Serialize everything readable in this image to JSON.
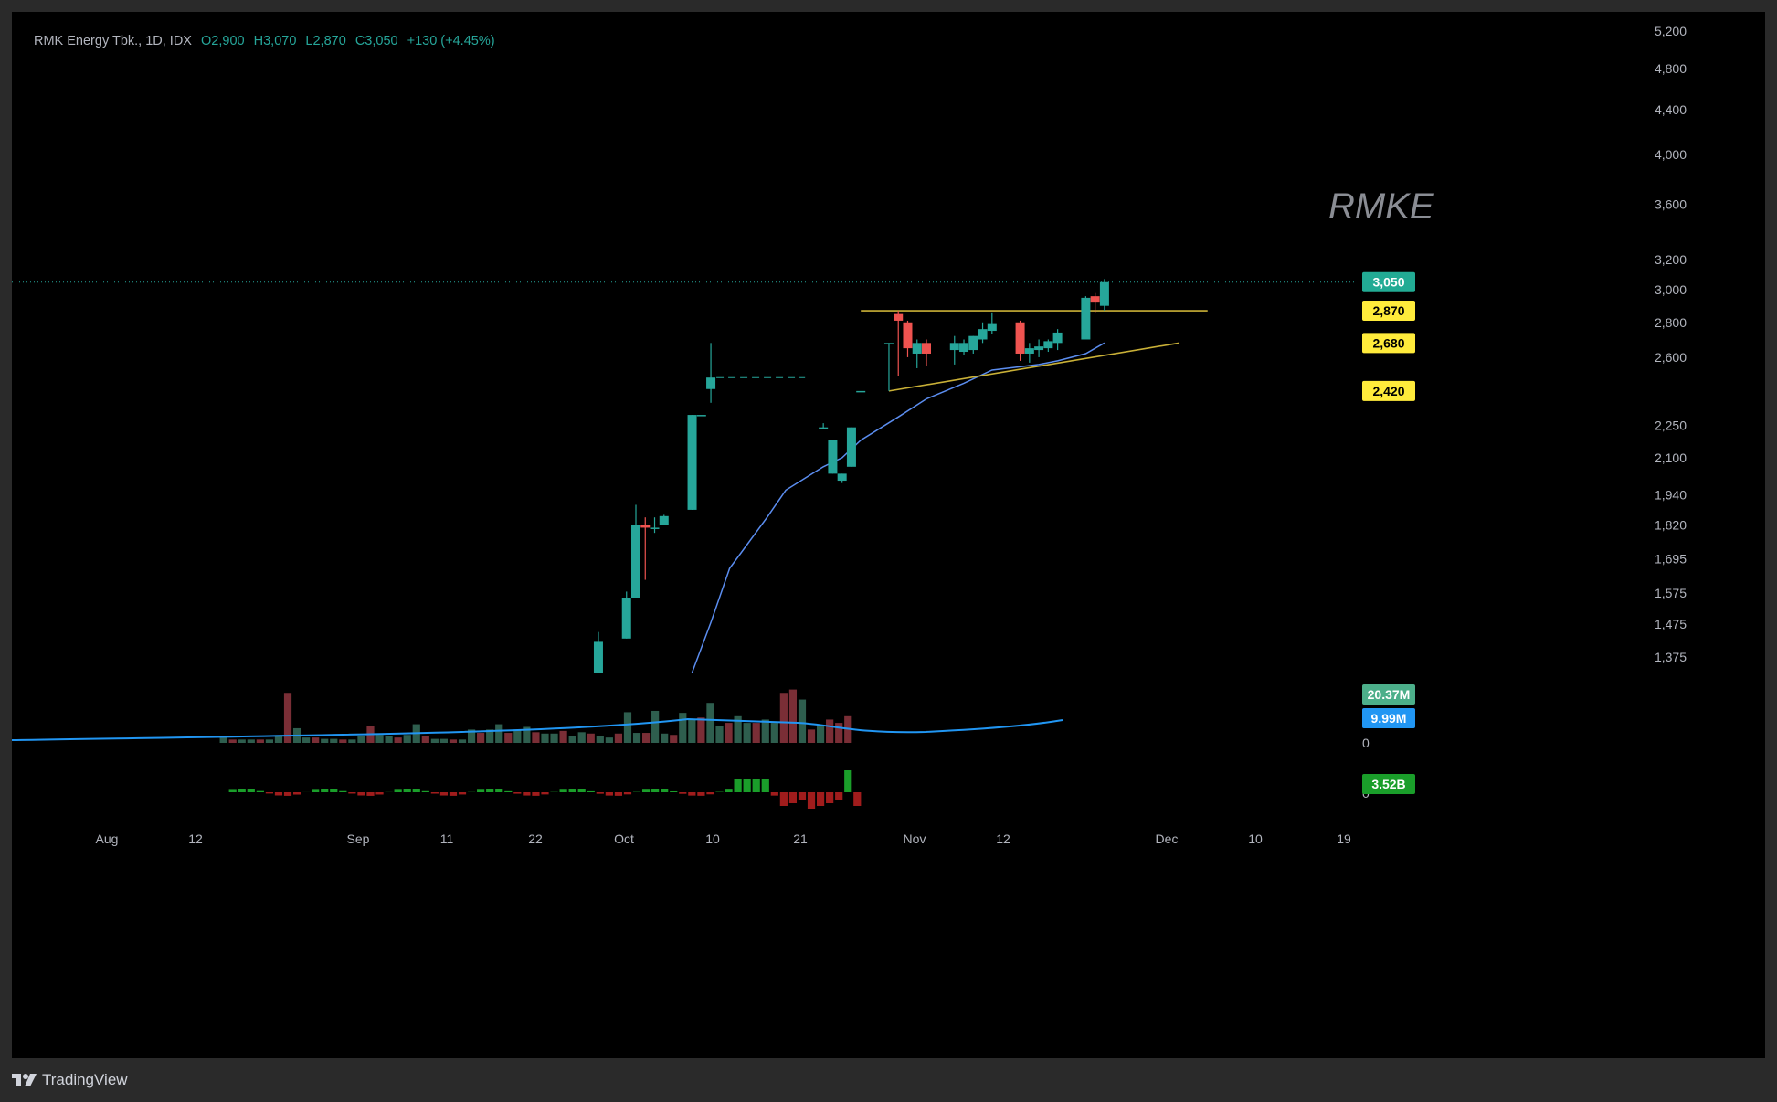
{
  "header": {
    "symbol": "RMK Energy Tbk., 1D, IDX",
    "open": "O2,900",
    "high": "H3,070",
    "low": "L2,870",
    "close": "C3,050",
    "change": "+130 (+4.45%)"
  },
  "watermark": "RMKE",
  "footer": {
    "brand": "TradingView"
  },
  "colors": {
    "up": "#26a69a",
    "down": "#ef5350",
    "ma": "#5b8def",
    "trendline": "#c9b037",
    "badge_yellow": "#ffeb3b",
    "badge_green": "#22ab94",
    "badge_blue": "#2196f3",
    "vol_up": "#2e5e4e",
    "vol_down": "#7a2e36"
  },
  "price_axis": {
    "labels": [
      "5,200",
      "4,800",
      "4,400",
      "4,000",
      "3,600",
      "3,200",
      "3,000",
      "2,800",
      "2,600",
      "2,250",
      "2,100",
      "1,940",
      "1,820",
      "1,695",
      "1,575",
      "1,475",
      "1,375"
    ],
    "scale": "log"
  },
  "badges": {
    "last_price": "3,050",
    "level_1": "2,870",
    "level_2": "2,680",
    "level_3": "2,420",
    "volume": "20.37M",
    "volume_ma": "9.99M",
    "volume_zero": "0",
    "flow": "3.52B",
    "flow_zero": "0"
  },
  "time_axis": {
    "labels": [
      "Aug",
      "12",
      "Sep",
      "11",
      "22",
      "Oct",
      "10",
      "21",
      "Nov",
      "12",
      "Dec",
      "10",
      "19"
    ]
  },
  "chart_data": {
    "type": "candlestick",
    "title": "RMK Energy Tbk., 1D, IDX",
    "ylim": [
      1300,
      5300
    ],
    "candles": [
      {
        "date": "Sep 27",
        "o": 1330,
        "h": 1450,
        "l": 1330,
        "c": 1420
      },
      {
        "date": "Sep 30",
        "o": 1430,
        "h": 1580,
        "l": 1430,
        "c": 1560
      },
      {
        "date": "Oct 1",
        "o": 1560,
        "h": 1900,
        "l": 1560,
        "c": 1820
      },
      {
        "date": "Oct 2",
        "o": 1820,
        "h": 1850,
        "l": 1620,
        "c": 1810
      },
      {
        "date": "Oct 3",
        "o": 1810,
        "h": 1850,
        "l": 1790,
        "c": 1810
      },
      {
        "date": "Oct 4",
        "o": 1820,
        "h": 1860,
        "l": 1820,
        "c": 1855
      },
      {
        "date": "Oct 7",
        "o": 1880,
        "h": 2300,
        "l": 1880,
        "c": 2300
      },
      {
        "date": "Oct 8",
        "o": 2300,
        "h": 2300,
        "l": 2300,
        "c": 2300
      },
      {
        "date": "Oct 9",
        "o": 2430,
        "h": 2680,
        "l": 2360,
        "c": 2490
      },
      {
        "date": "Oct 21",
        "o": 2240,
        "h": 2260,
        "l": 2230,
        "c": 2240
      },
      {
        "date": "Oct 22",
        "o": 2030,
        "h": 2170,
        "l": 2030,
        "c": 2180
      },
      {
        "date": "Oct 23",
        "o": 2000,
        "h": 2030,
        "l": 1990,
        "c": 2030
      },
      {
        "date": "Oct 24",
        "o": 2060,
        "h": 2240,
        "l": 2060,
        "c": 2240
      },
      {
        "date": "Oct 25",
        "o": 2420,
        "h": 2420,
        "l": 2420,
        "c": 2420
      },
      {
        "date": "Oct 28",
        "o": 2680,
        "h": 2680,
        "l": 2420,
        "c": 2680
      },
      {
        "date": "Oct 29",
        "o": 2850,
        "h": 2870,
        "l": 2500,
        "c": 2810
      },
      {
        "date": "Oct 30",
        "o": 2800,
        "h": 2810,
        "l": 2600,
        "c": 2650
      },
      {
        "date": "Oct 31",
        "o": 2620,
        "h": 2700,
        "l": 2540,
        "c": 2680
      },
      {
        "date": "Nov 1",
        "o": 2680,
        "h": 2700,
        "l": 2550,
        "c": 2620
      },
      {
        "date": "Nov 4",
        "o": 2640,
        "h": 2720,
        "l": 2560,
        "c": 2680
      },
      {
        "date": "Nov 5",
        "o": 2630,
        "h": 2700,
        "l": 2610,
        "c": 2680
      },
      {
        "date": "Nov 6",
        "o": 2640,
        "h": 2720,
        "l": 2620,
        "c": 2720
      },
      {
        "date": "Nov 7",
        "o": 2700,
        "h": 2800,
        "l": 2680,
        "c": 2760
      },
      {
        "date": "Nov 8",
        "o": 2750,
        "h": 2860,
        "l": 2730,
        "c": 2790
      },
      {
        "date": "Nov 11",
        "o": 2800,
        "h": 2810,
        "l": 2580,
        "c": 2620
      },
      {
        "date": "Nov 12",
        "o": 2620,
        "h": 2680,
        "l": 2570,
        "c": 2650
      },
      {
        "date": "Nov 13",
        "o": 2640,
        "h": 2700,
        "l": 2600,
        "c": 2660
      },
      {
        "date": "Nov 14",
        "o": 2650,
        "h": 2700,
        "l": 2630,
        "c": 2690
      },
      {
        "date": "Nov 15",
        "o": 2680,
        "h": 2760,
        "l": 2640,
        "c": 2740
      },
      {
        "date": "Nov 18",
        "o": 2700,
        "h": 2960,
        "l": 2700,
        "c": 2950
      },
      {
        "date": "Nov 19",
        "o": 2960,
        "h": 2980,
        "l": 2860,
        "c": 2920
      },
      {
        "date": "Nov 20",
        "o": 2900,
        "h": 3070,
        "l": 2870,
        "c": 3050
      }
    ],
    "moving_average": [
      {
        "date": "Oct 7",
        "v": 1330
      },
      {
        "date": "Oct 9",
        "v": 1480
      },
      {
        "date": "Oct 11",
        "v": 1660
      },
      {
        "date": "Oct 15",
        "v": 1850
      },
      {
        "date": "Oct 17",
        "v": 1960
      },
      {
        "date": "Oct 21",
        "v": 2060
      },
      {
        "date": "Oct 23",
        "v": 2100
      },
      {
        "date": "Oct 25",
        "v": 2180
      },
      {
        "date": "Oct 29",
        "v": 2290
      },
      {
        "date": "Nov 1",
        "v": 2380
      },
      {
        "date": "Nov 5",
        "v": 2460
      },
      {
        "date": "Nov 8",
        "v": 2530
      },
      {
        "date": "Nov 13",
        "v": 2560
      },
      {
        "date": "Nov 15",
        "v": 2580
      },
      {
        "date": "Nov 18",
        "v": 2620
      },
      {
        "date": "Nov 20",
        "v": 2680
      }
    ],
    "trendlines": [
      {
        "name": "resistance",
        "from": {
          "date": "Oct 25",
          "v": 2870
        },
        "to": {
          "date": "Dec 1",
          "v": 2870
        }
      },
      {
        "name": "rising support",
        "from": {
          "date": "Oct 28",
          "v": 2420
        },
        "to": {
          "date": "Nov 28",
          "v": 2680
        }
      }
    ]
  }
}
